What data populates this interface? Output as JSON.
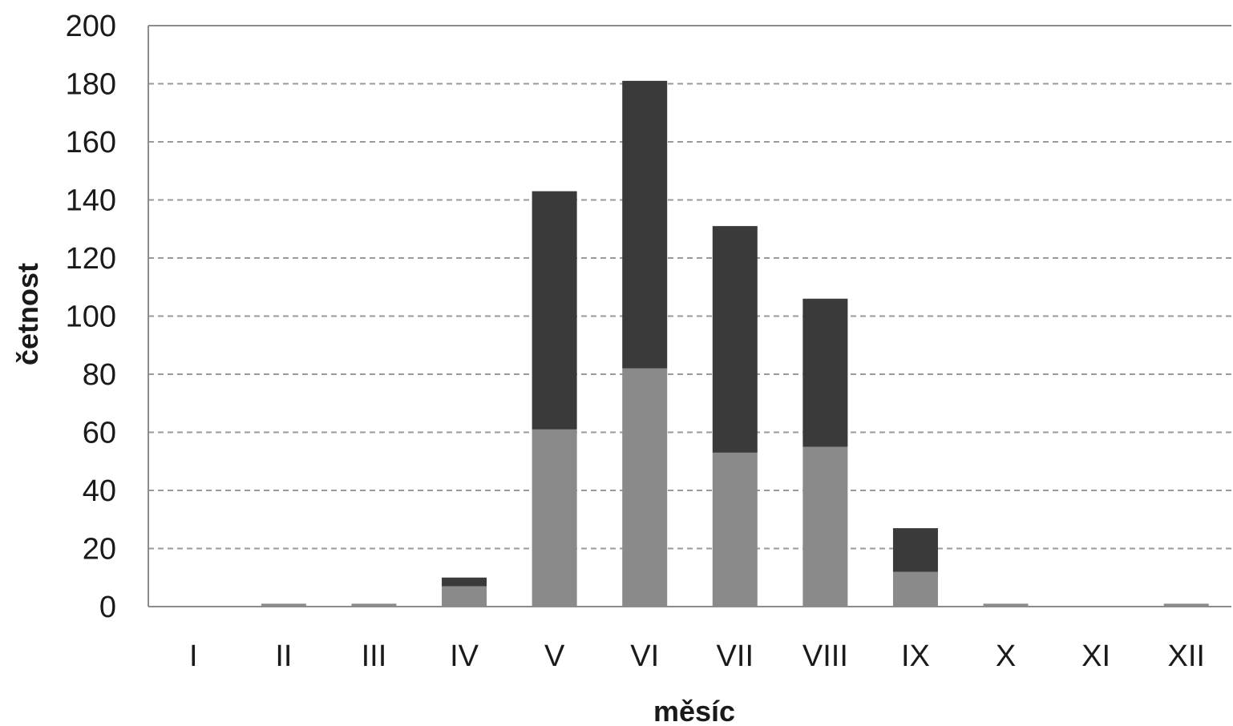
{
  "chart_data": {
    "type": "bar",
    "stacked": true,
    "categories": [
      "I",
      "II",
      "III",
      "IV",
      "V",
      "VI",
      "VII",
      "VIII",
      "IX",
      "X",
      "XI",
      "XII"
    ],
    "series": [
      {
        "color": "#8a8a8a",
        "values": [
          0,
          1,
          1,
          7,
          61,
          82,
          53,
          55,
          12,
          1,
          0,
          1
        ]
      },
      {
        "color": "#3a3a3a",
        "values": [
          0,
          0,
          0,
          3,
          82,
          99,
          78,
          51,
          15,
          0,
          0,
          0
        ]
      }
    ],
    "xlabel": "měsíc",
    "ylabel": "četnost",
    "ylim": [
      0,
      200
    ],
    "yticks": [
      0,
      20,
      40,
      60,
      80,
      100,
      120,
      140,
      160,
      180,
      200
    ],
    "grid": "horizontal-dashed"
  }
}
